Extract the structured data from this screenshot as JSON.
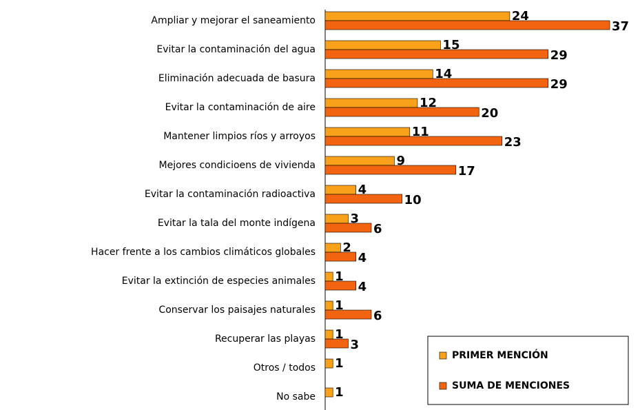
{
  "chart_data": {
    "type": "bar",
    "orientation": "horizontal",
    "categories": [
      "Ampliar y mejorar el saneamiento",
      "Evitar la contaminación del agua",
      "Eliminación adecuada de basura",
      "Evitar la contaminación de aire",
      "Mantener limpios ríos y arroyos",
      "Mejores condicioens de vivienda",
      "Evitar la contaminación radioactiva",
      "Evitar la tala del monte indígena",
      "Hacer frente a los cambios climáticos globales",
      "Evitar la extinción de especies animales",
      "Conservar los paisajes naturales",
      "Recuperar las playas",
      "Otros / todos",
      "No sabe"
    ],
    "series": [
      {
        "name": "PRIMER MENCIÓN",
        "color": "#F9A11B",
        "values": [
          24,
          15,
          14,
          12,
          11,
          9,
          4,
          3,
          2,
          1,
          1,
          1,
          1,
          1
        ]
      },
      {
        "name": "SUMA DE MENCIONES",
        "color": "#F2640F",
        "values": [
          37,
          29,
          29,
          20,
          23,
          17,
          10,
          6,
          4,
          4,
          6,
          3,
          null,
          null
        ]
      }
    ],
    "legend": "lower right"
  }
}
